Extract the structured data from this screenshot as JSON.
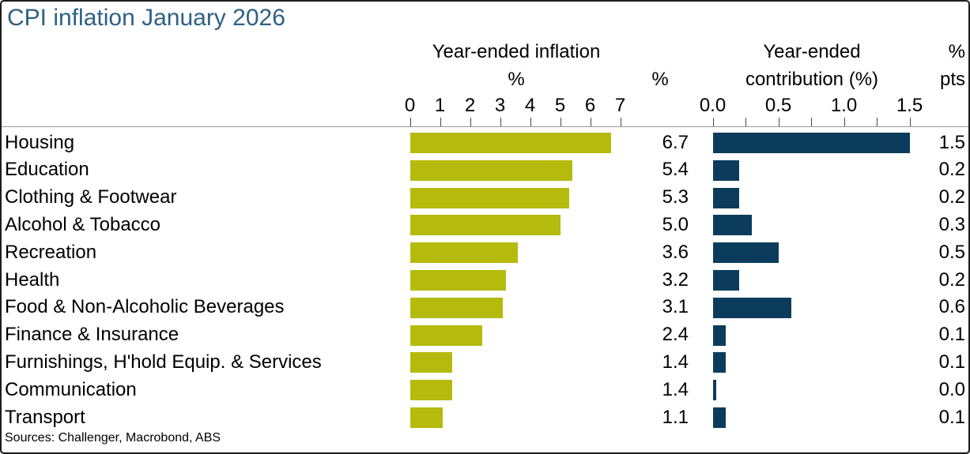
{
  "title": "CPI inflation January 2026",
  "source": "Sources: Challenger, Macrobond, ABS",
  "colors": {
    "title_blue": "#2d6186",
    "inflation_bar": "#b4bb0c",
    "contribution_bar": "#0b3c5c",
    "axis_line": "#9a9a9a"
  },
  "left_panel": {
    "title": "Year-ended inflation",
    "unit": "%",
    "value_column_header": "%"
  },
  "right_panel": {
    "title_line1": "Year-ended",
    "title_line2": "contribution (%)",
    "value_column_header_line1": "%",
    "value_column_header_line2": "pts"
  },
  "chart_data": {
    "type": "bar",
    "orientation": "horizontal",
    "title": "CPI inflation January 2026",
    "categories": [
      "Housing",
      "Education",
      "Clothing & Footwear",
      "Alcohol & Tobacco",
      "Recreation",
      "Health",
      "Food & Non-Alcoholic Beverages",
      "Finance & Insurance",
      "Furnishings, H'hold Equip. & Services",
      "Communication",
      "Transport"
    ],
    "series": [
      {
        "name": "Year-ended inflation",
        "unit": "%",
        "values": [
          6.7,
          5.4,
          5.3,
          5.0,
          3.6,
          3.2,
          3.1,
          2.4,
          1.4,
          1.4,
          1.1
        ],
        "axis_range": [
          0,
          7
        ],
        "tick_labels": [
          "0",
          "1",
          "2",
          "3",
          "4",
          "5",
          "6",
          "7"
        ],
        "color": "#b4bb0c",
        "value_labels_shown": true
      },
      {
        "name": "Year-ended contribution (%)",
        "unit": "% pts",
        "values": [
          1.5,
          0.2,
          0.2,
          0.3,
          0.5,
          0.2,
          0.6,
          0.1,
          0.1,
          0.0,
          0.1
        ],
        "axis_range": [
          0,
          1.75
        ],
        "tick_labels": [
          "0.0",
          "0.5",
          "1.0",
          "1.5"
        ],
        "minor_tick_interval": 0.25,
        "color": "#0b3c5c",
        "value_labels_shown": true
      }
    ],
    "legend": "none",
    "grid": "off"
  }
}
